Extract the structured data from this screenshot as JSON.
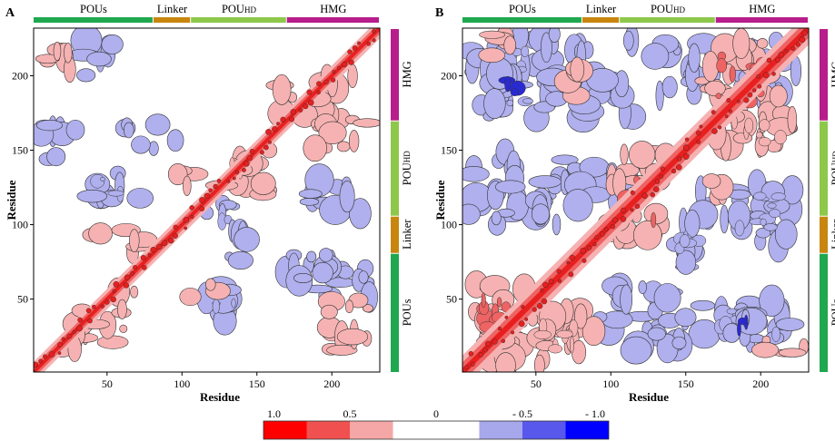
{
  "chart_data": [
    {
      "type": "heatmap",
      "panel_label": "A",
      "xlabel": "Residue",
      "ylabel": "Residue",
      "xlim": [
        1,
        232
      ],
      "ylim": [
        1,
        232
      ],
      "x_ticks": [
        50,
        100,
        150,
        200
      ],
      "y_ticks": [
        50,
        100,
        150,
        200
      ],
      "domains": [
        {
          "label": "POUs",
          "start": 1,
          "end": 81,
          "color": "#1fa84f"
        },
        {
          "label": "Linker",
          "start": 81,
          "end": 106,
          "color": "#c8860f"
        },
        {
          "label": "POUHD",
          "start": 106,
          "end": 170,
          "color": "#8dc84b"
        },
        {
          "label": "HMG",
          "start": 170,
          "end": 232,
          "color": "#b81d8c"
        }
      ],
      "matrix_description": "Residue-residue dynamic cross-correlation map; strong positive correlation (red) along the diagonal, scattered positive (red) and negative (blue) off-diagonal patches",
      "positive_blocks": [
        {
          "x": [
            1,
            232
          ],
          "y": [
            1,
            232
          ],
          "v": 1.0,
          "kind": "diagonal"
        },
        {
          "x": [
            8,
            30
          ],
          "y": [
            195,
            225
          ],
          "v": 0.4
        },
        {
          "x": [
            20,
            55
          ],
          "y": [
            15,
            45
          ],
          "v": 0.4
        },
        {
          "x": [
            55,
            75
          ],
          "y": [
            30,
            55
          ],
          "v": 0.4
        },
        {
          "x": [
            105,
            125
          ],
          "y": [
            45,
            60
          ],
          "v": 0.4
        },
        {
          "x": [
            125,
            160
          ],
          "y": [
            120,
            150
          ],
          "v": 0.5
        },
        {
          "x": [
            160,
            215
          ],
          "y": [
            170,
            200
          ],
          "v": 0.4
        },
        {
          "x": [
            175,
            225
          ],
          "y": [
            150,
            170
          ],
          "v": 0.35
        },
        {
          "x": [
            40,
            80
          ],
          "y": [
            80,
            100
          ],
          "v": 0.35
        },
        {
          "x": [
            85,
            110
          ],
          "y": [
            125,
            140
          ],
          "v": 0.35
        },
        {
          "x": [
            190,
            225
          ],
          "y": [
            15,
            50
          ],
          "v": 0.35
        }
      ],
      "negative_blocks": [
        {
          "x": [
            30,
            65
          ],
          "y": [
            200,
            225
          ],
          "v": -0.35
        },
        {
          "x": [
            5,
            30
          ],
          "y": [
            140,
            175
          ],
          "v": -0.35
        },
        {
          "x": [
            35,
            75
          ],
          "y": [
            115,
            135
          ],
          "v": -0.45
        },
        {
          "x": [
            115,
            140
          ],
          "y": [
            95,
            115
          ],
          "v": -0.5
        },
        {
          "x": [
            130,
            150
          ],
          "y": [
            75,
            105
          ],
          "v": -0.4
        },
        {
          "x": [
            115,
            140
          ],
          "y": [
            35,
            60
          ],
          "v": -0.45
        },
        {
          "x": [
            185,
            230
          ],
          "y": [
            50,
            75
          ],
          "v": -0.35
        },
        {
          "x": [
            165,
            200
          ],
          "y": [
            60,
            90
          ],
          "v": -0.35
        },
        {
          "x": [
            185,
            225
          ],
          "y": [
            100,
            130
          ],
          "v": -0.3
        },
        {
          "x": [
            60,
            100
          ],
          "y": [
            150,
            170
          ],
          "v": -0.3
        }
      ]
    },
    {
      "type": "heatmap",
      "panel_label": "B",
      "xlabel": "Residue",
      "ylabel": "Residue",
      "xlim": [
        1,
        232
      ],
      "ylim": [
        1,
        232
      ],
      "x_ticks": [
        50,
        100,
        150,
        200
      ],
      "y_ticks": [
        50,
        100,
        150,
        200
      ],
      "domains": [
        {
          "label": "POUs",
          "start": 1,
          "end": 81,
          "color": "#1fa84f"
        },
        {
          "label": "Linker",
          "start": 81,
          "end": 106,
          "color": "#c8860f"
        },
        {
          "label": "POUHD",
          "start": 106,
          "end": 170,
          "color": "#8dc84b"
        },
        {
          "label": "HMG",
          "start": 170,
          "end": 232,
          "color": "#b81d8c"
        }
      ],
      "matrix_description": "Residue-residue dynamic cross-correlation map; broad positive correlation (red) along the diagonal and cross-arms, large negative (blue) blocks off-diagonal",
      "positive_blocks": [
        {
          "x": [
            1,
            232
          ],
          "y": [
            1,
            232
          ],
          "v": 1.0,
          "kind": "diagonal"
        },
        {
          "x": [
            5,
            45
          ],
          "y": [
            5,
            65
          ],
          "v": 0.6
        },
        {
          "x": [
            45,
            90
          ],
          "y": [
            5,
            45
          ],
          "v": 0.5
        },
        {
          "x": [
            100,
            140
          ],
          "y": [
            90,
            150
          ],
          "v": 0.55
        },
        {
          "x": [
            160,
            215
          ],
          "y": [
            170,
            225
          ],
          "v": 0.55
        },
        {
          "x": [
            170,
            230
          ],
          "y": [
            150,
            175
          ],
          "v": 0.45
        },
        {
          "x": [
            20,
            45
          ],
          "y": [
            210,
            228
          ],
          "v": 0.35
        },
        {
          "x": [
            55,
            80
          ],
          "y": [
            185,
            205
          ],
          "v": 0.35
        },
        {
          "x": [
            165,
            185
          ],
          "y": [
            115,
            135
          ],
          "v": 0.35
        },
        {
          "x": [
            200,
            230
          ],
          "y": [
            10,
            25
          ],
          "v": 0.3
        }
      ],
      "negative_blocks": [
        {
          "x": [
            5,
            65
          ],
          "y": [
            170,
            228
          ],
          "v": -0.45
        },
        {
          "x": [
            20,
            45
          ],
          "y": [
            180,
            205
          ],
          "v": -0.75
        },
        {
          "x": [
            75,
            115
          ],
          "y": [
            170,
            228
          ],
          "v": -0.4
        },
        {
          "x": [
            5,
            70
          ],
          "y": [
            100,
            150
          ],
          "v": -0.4
        },
        {
          "x": [
            70,
            110
          ],
          "y": [
            110,
            145
          ],
          "v": -0.35
        },
        {
          "x": [
            140,
            165
          ],
          "y": [
            70,
            125
          ],
          "v": -0.45
        },
        {
          "x": [
            175,
            225
          ],
          "y": [
            85,
            130
          ],
          "v": -0.45
        },
        {
          "x": [
            160,
            225
          ],
          "y": [
            20,
            50
          ],
          "v": -0.45
        },
        {
          "x": [
            175,
            200
          ],
          "y": [
            25,
            45
          ],
          "v": -0.75
        },
        {
          "x": [
            125,
            170
          ],
          "y": [
            185,
            225
          ],
          "v": -0.35
        },
        {
          "x": [
            185,
            230
          ],
          "y": [
            185,
            225
          ],
          "v": -0.3
        },
        {
          "x": [
            90,
            150
          ],
          "y": [
            15,
            60
          ],
          "v": -0.35
        }
      ]
    }
  ],
  "colorbar": {
    "tick_labels": [
      "1.0",
      "0.5",
      "0",
      "- 0.5",
      "- 1.0"
    ],
    "colors": [
      "#ff0000",
      "#f05050",
      "#f5a6a6",
      "#ffffff",
      "#ffffff",
      "#a7a7ec",
      "#5858ec",
      "#0000ff"
    ]
  },
  "colors": {
    "pos_strong": "#e81f1f",
    "pos_mid": "#ee6363",
    "pos_light": "#f6b2b2",
    "neg_light": "#b0b0ee",
    "neg_mid": "#6a6ae0",
    "neg_strong": "#2a2ad0"
  }
}
